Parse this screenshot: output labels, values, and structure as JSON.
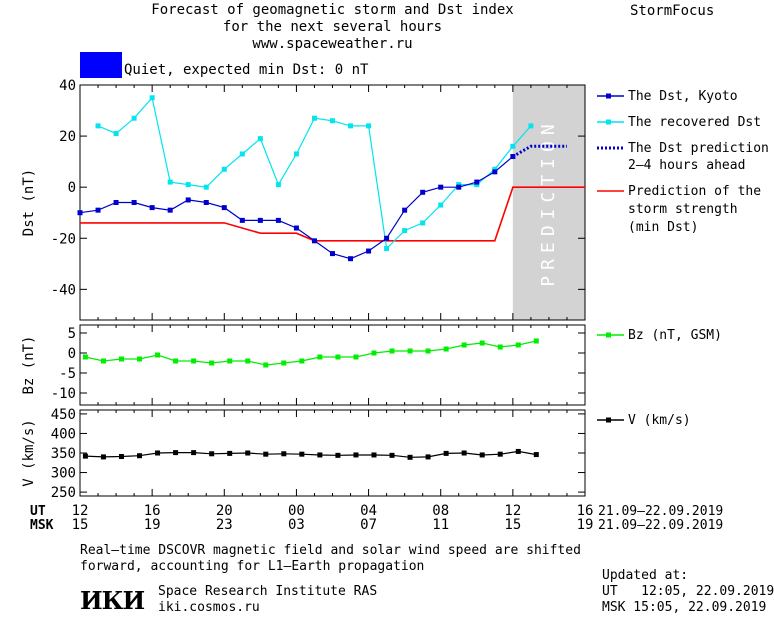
{
  "header": {
    "title_line1": "Forecast of geomagnetic storm and Dst index",
    "title_line2": "for the next several hours",
    "url": "www.spaceweather.ru",
    "brand": "StormFocus",
    "quiet_label": "Quiet, expected min Dst: 0 nT",
    "quiet_color": "#0000ff"
  },
  "time_axis": {
    "ut_label": "UT",
    "msk_label": "MSK",
    "ut_ticks": [
      "12",
      "16",
      "20",
      "00",
      "04",
      "08",
      "12",
      "16"
    ],
    "msk_ticks": [
      "15",
      "19",
      "23",
      "03",
      "07",
      "11",
      "15",
      "19"
    ],
    "date_range": "21.09–22.09.2019",
    "x_range_hours": [
      0,
      28
    ]
  },
  "chart_data": [
    {
      "type": "line",
      "ylabel": "Dst (nT)",
      "ylim": [
        -52,
        40
      ],
      "yticks": [
        40,
        20,
        0,
        -20,
        -40
      ],
      "prediction_zone": {
        "x_from": 24,
        "x_to": 28,
        "label": "PREDICTION",
        "color": "#d3d3d3"
      },
      "series": [
        {
          "name": "The Dst, Kyoto",
          "color": "#0000cc",
          "style": "line-markers",
          "x": [
            0,
            1,
            2,
            3,
            4,
            5,
            6,
            7,
            8,
            9,
            10,
            11,
            12,
            13,
            14,
            15,
            16,
            17,
            18,
            19,
            20,
            21,
            22,
            23,
            24
          ],
          "y": [
            -10,
            -9,
            -6,
            -6,
            -8,
            -9,
            -5,
            -6,
            -8,
            -13,
            -13,
            -13,
            -16,
            -21,
            -26,
            -28,
            -25,
            -20,
            -9,
            -2,
            0,
            0,
            2,
            6,
            12
          ]
        },
        {
          "name": "The recovered Dst",
          "color": "#00e5ee",
          "style": "line-markers",
          "x": [
            1,
            2,
            3,
            4,
            5,
            6,
            7,
            8,
            9,
            10,
            11,
            12,
            13,
            14,
            15,
            16,
            17,
            18,
            19,
            20,
            21,
            22,
            23,
            24,
            25
          ],
          "y": [
            24,
            21,
            27,
            35,
            2,
            1,
            0,
            7,
            13,
            19,
            1,
            13,
            27,
            26,
            24,
            24,
            -24,
            -17,
            -14,
            -7,
            1,
            1,
            7,
            16,
            24
          ]
        },
        {
          "name": "The Dst prediction 2–4 hours ahead",
          "color": "#0000cc",
          "style": "dotted",
          "x": [
            24,
            25,
            26,
            27
          ],
          "y": [
            12,
            16,
            16,
            16
          ]
        },
        {
          "name": "Prediction of the storm strength (min Dst)",
          "color": "#ff0000",
          "style": "line",
          "x": [
            0,
            8,
            10,
            12,
            13,
            14,
            23,
            24,
            28
          ],
          "y": [
            -14,
            -14,
            -18,
            -18,
            -21,
            -21,
            -21,
            0,
            0
          ]
        }
      ]
    },
    {
      "type": "line",
      "ylabel": "Bz (nT)",
      "ylim": [
        -13,
        7
      ],
      "yticks": [
        5,
        0,
        -5,
        -10
      ],
      "series": [
        {
          "name": "Bz (nT, GSM)",
          "color": "#00ee00",
          "style": "line-markers",
          "x": [
            0.3,
            1.3,
            2.3,
            3.3,
            4.3,
            5.3,
            6.3,
            7.3,
            8.3,
            9.3,
            10.3,
            11.3,
            12.3,
            13.3,
            14.3,
            15.3,
            16.3,
            17.3,
            18.3,
            19.3,
            20.3,
            21.3,
            22.3,
            23.3,
            24.3,
            25.3
          ],
          "y": [
            -1,
            -2,
            -1.5,
            -1.5,
            -0.5,
            -2,
            -2,
            -2.5,
            -2,
            -2,
            -3,
            -2.5,
            -2,
            -1,
            -1,
            -1,
            0,
            0.5,
            0.5,
            0.5,
            1,
            2,
            2.5,
            1.5,
            2,
            3
          ]
        }
      ]
    },
    {
      "type": "line",
      "ylabel": "V (km/s)",
      "ylim": [
        240,
        460
      ],
      "yticks": [
        450,
        400,
        350,
        300,
        250
      ],
      "series": [
        {
          "name": "V (km/s)",
          "color": "#000000",
          "style": "line-markers",
          "x": [
            0.3,
            1.3,
            2.3,
            3.3,
            4.3,
            5.3,
            6.3,
            7.3,
            8.3,
            9.3,
            10.3,
            11.3,
            12.3,
            13.3,
            14.3,
            15.3,
            16.3,
            17.3,
            18.3,
            19.3,
            20.3,
            21.3,
            22.3,
            23.3,
            24.3,
            25.3
          ],
          "y": [
            342,
            340,
            341,
            343,
            350,
            351,
            351,
            348,
            349,
            350,
            347,
            348,
            347,
            345,
            344,
            345,
            345,
            344,
            339,
            340,
            349,
            350,
            345,
            347,
            354,
            346
          ]
        }
      ]
    }
  ],
  "legend": {
    "dst_kyoto": "The Dst, Kyoto",
    "recovered": "The recovered Dst",
    "pred_line1": "The Dst prediction",
    "pred_line2": "2–4 hours ahead",
    "storm_line1": "Prediction of the",
    "storm_line2": "storm strength",
    "storm_line3": "(min Dst)",
    "bz": "Bz (nT, GSM)",
    "v": "V (km/s)"
  },
  "footer": {
    "note_line1": "Real–time DSCOVR magnetic field and solar wind speed are shifted",
    "note_line2": "forward, accounting for L1–Earth propagation",
    "logo_text": "ИКИ",
    "institute": "Space Research Institute RAS",
    "site": "iki.cosmos.ru",
    "updated_label": "Updated at:",
    "updated_ut": "UT   12:05, 22.09.2019",
    "updated_msk": "MSK 15:05, 22.09.2019"
  }
}
